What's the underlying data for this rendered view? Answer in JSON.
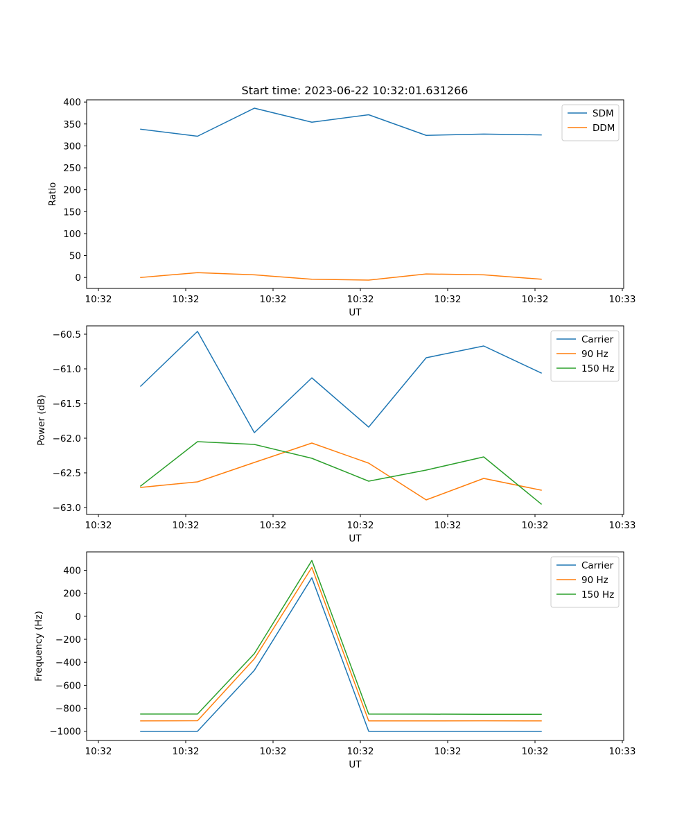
{
  "figure": {
    "title": "Start time: 2023-06-22 10:32:01.631266"
  },
  "colors": {
    "blue": "#1f77b4",
    "orange": "#ff7f0e",
    "green": "#2ca02c"
  },
  "chart_data": [
    {
      "type": "line",
      "title": "Start time: 2023-06-22 10:32:01.631266",
      "xlabel": "UT",
      "ylabel": "Ratio",
      "x_tick_labels": [
        "10:32",
        "10:32",
        "10:32",
        "10:32",
        "10:32",
        "10:32",
        "10:33"
      ],
      "ylim": [
        -25,
        405
      ],
      "y_ticks": [
        0,
        50,
        100,
        150,
        200,
        250,
        300,
        350,
        400
      ],
      "y_tick_labels": [
        "0",
        "50",
        "100",
        "150",
        "200",
        "250",
        "300",
        "350",
        "400"
      ],
      "legend_position": "top-right",
      "grid": false,
      "series": [
        {
          "name": "SDM",
          "color": "#1f77b4",
          "values": [
            338,
            322,
            386,
            354,
            371,
            324,
            327,
            325
          ]
        },
        {
          "name": "DDM",
          "color": "#ff7f0e",
          "values": [
            0,
            11,
            6,
            -4,
            -6,
            8,
            6,
            -4
          ]
        }
      ]
    },
    {
      "type": "line",
      "xlabel": "UT",
      "ylabel": "Power (dB)",
      "x_tick_labels": [
        "10:32",
        "10:32",
        "10:32",
        "10:32",
        "10:32",
        "10:32",
        "10:33"
      ],
      "ylim": [
        -63.1,
        -60.38
      ],
      "y_ticks": [
        -63.0,
        -62.5,
        -62.0,
        -61.5,
        -61.0,
        -60.5
      ],
      "y_tick_labels": [
        "−63.0",
        "−62.5",
        "−62.0",
        "−61.5",
        "−61.0",
        "−60.5"
      ],
      "legend_position": "top-right",
      "grid": false,
      "series": [
        {
          "name": "Carrier",
          "color": "#1f77b4",
          "values": [
            -61.25,
            -60.46,
            -61.92,
            -61.13,
            -61.84,
            -60.84,
            -60.67,
            -61.06
          ]
        },
        {
          "name": "90 Hz",
          "color": "#ff7f0e",
          "values": [
            -62.71,
            -62.63,
            -62.35,
            -62.07,
            -62.36,
            -62.89,
            -62.58,
            -62.75
          ]
        },
        {
          "name": "150 Hz",
          "color": "#2ca02c",
          "values": [
            -62.69,
            -62.05,
            -62.09,
            -62.29,
            -62.62,
            -62.46,
            -62.27,
            -62.95
          ]
        }
      ]
    },
    {
      "type": "line",
      "xlabel": "UT",
      "ylabel": "Frequency (Hz)",
      "x_tick_labels": [
        "10:32",
        "10:32",
        "10:32",
        "10:32",
        "10:32",
        "10:32",
        "10:33"
      ],
      "ylim": [
        -1080,
        560
      ],
      "y_ticks": [
        -1000,
        -800,
        -600,
        -400,
        -200,
        0,
        200,
        400
      ],
      "y_tick_labels": [
        "−1000",
        "−800",
        "−600",
        "−400",
        "−200",
        "0",
        "200",
        "400"
      ],
      "legend_position": "top-right",
      "grid": false,
      "series": [
        {
          "name": "Carrier",
          "color": "#1f77b4",
          "values": [
            -1000,
            -1000,
            -470,
            335,
            -1000,
            -1000,
            -1000,
            -1000
          ]
        },
        {
          "name": "90 Hz",
          "color": "#ff7f0e",
          "values": [
            -910,
            -908,
            -370,
            425,
            -910,
            -910,
            -909,
            -910
          ]
        },
        {
          "name": "150 Hz",
          "color": "#2ca02c",
          "values": [
            -850,
            -850,
            -325,
            485,
            -850,
            -851,
            -852,
            -852
          ]
        }
      ]
    }
  ]
}
